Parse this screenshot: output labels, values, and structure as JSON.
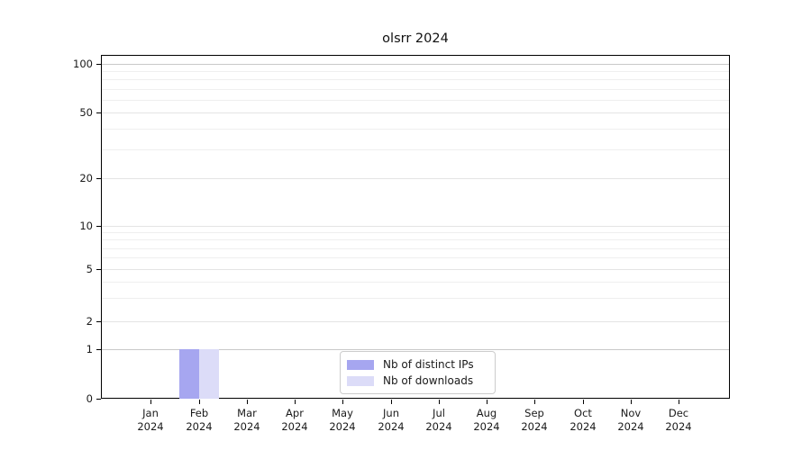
{
  "chart_data": {
    "type": "bar",
    "title": "olsrr 2024",
    "categories": [
      "Jan 2024",
      "Feb 2024",
      "Mar 2024",
      "Apr 2024",
      "May 2024",
      "Jun 2024",
      "Jul 2024",
      "Aug 2024",
      "Sep 2024",
      "Oct 2024",
      "Nov 2024",
      "Dec 2024"
    ],
    "x_tick_labels": [
      {
        "month": "Jan",
        "year": "2024"
      },
      {
        "month": "Feb",
        "year": "2024"
      },
      {
        "month": "Mar",
        "year": "2024"
      },
      {
        "month": "Apr",
        "year": "2024"
      },
      {
        "month": "May",
        "year": "2024"
      },
      {
        "month": "Jun",
        "year": "2024"
      },
      {
        "month": "Jul",
        "year": "2024"
      },
      {
        "month": "Aug",
        "year": "2024"
      },
      {
        "month": "Sep",
        "year": "2024"
      },
      {
        "month": "Oct",
        "year": "2024"
      },
      {
        "month": "Nov",
        "year": "2024"
      },
      {
        "month": "Dec",
        "year": "2024"
      }
    ],
    "series": [
      {
        "name": "Nb of distinct IPs",
        "color": "#a6a6f0",
        "values": [
          0,
          1,
          0,
          0,
          0,
          0,
          0,
          0,
          0,
          0,
          0,
          0
        ]
      },
      {
        "name": "Nb of downloads",
        "color": "#dcdcf8",
        "values": [
          0,
          1,
          0,
          0,
          0,
          0,
          0,
          0,
          0,
          0,
          0,
          0
        ]
      }
    ],
    "xlabel": "",
    "ylabel": "",
    "yscale": "symlog",
    "ytick_values": [
      0,
      1,
      2,
      5,
      10,
      20,
      50,
      100
    ],
    "ytick_labels": [
      "0",
      "1",
      "2",
      "5",
      "10",
      "20",
      "50",
      "100"
    ],
    "minor_ytick_values": [
      3,
      4,
      6,
      7,
      8,
      9,
      30,
      40,
      60,
      70,
      80,
      90
    ],
    "ylim": [
      0,
      113
    ],
    "grid": "horizontal",
    "legend_position": "lower center"
  },
  "legend": {
    "items": [
      {
        "label": "Nb of distinct IPs",
        "swatch_color": "#a6a6f0"
      },
      {
        "label": "Nb of downloads",
        "swatch_color": "#dcdcf8"
      }
    ]
  },
  "colors": {
    "background": "#ffffff",
    "spine": "#000000",
    "grid_emphasis": "#c9c9c9",
    "grid_labeled": "#e4e4e4",
    "grid_minor": "#efefef",
    "text": "#1a1a1a",
    "bar_distinct_ips": "#a6a6f0",
    "bar_downloads": "#dcdcf8"
  }
}
